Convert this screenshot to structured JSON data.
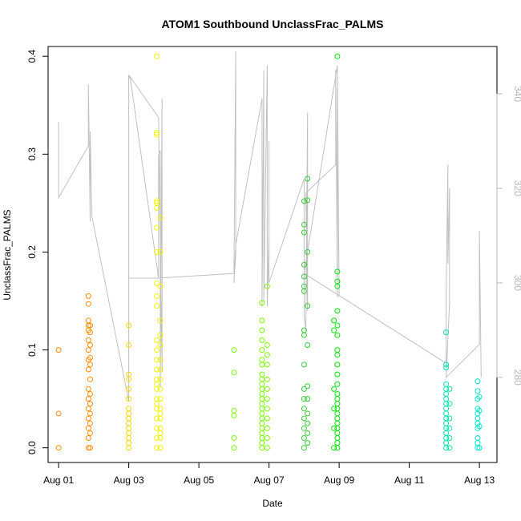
{
  "chart_data": {
    "type": "scatter",
    "title": "ATOM1 Southbound UnclassFrac_PALMS",
    "xlabel": "Date",
    "ylabel": "UnclassFrac_PALMS",
    "x_tick_labels": [
      "Aug 01",
      "Aug 03",
      "Aug 05",
      "Aug 07",
      "Aug 09",
      "Aug 11",
      "Aug 13"
    ],
    "x_ticks_day": [
      1,
      3,
      5,
      7,
      9,
      11,
      13
    ],
    "xlim_day": [
      0.7,
      13.5
    ],
    "ylim": [
      -0.015,
      0.41
    ],
    "y_ticks": [
      0.0,
      0.1,
      0.2,
      0.3,
      0.4
    ],
    "y_tick_labels": [
      "0.0",
      "0.1",
      "0.2",
      "0.3",
      "0.4"
    ],
    "right_axis": {
      "ticks": [
        280,
        300,
        320,
        340
      ],
      "tick_labels": [
        "280",
        "300",
        "320",
        "340"
      ],
      "ylim": [
        262,
        350
      ],
      "color": "#b8b8b8"
    },
    "grid": false,
    "series": [
      {
        "color": "#ff8c00",
        "points": [
          [
            1.0,
            0.1
          ],
          [
            1.0,
            0.035
          ],
          [
            1.0,
            0.0
          ],
          [
            1.85,
            0.155
          ],
          [
            1.85,
            0.147
          ],
          [
            1.85,
            0.13
          ],
          [
            1.85,
            0.125
          ],
          [
            1.85,
            0.12
          ],
          [
            1.85,
            0.11
          ],
          [
            1.85,
            0.1
          ],
          [
            1.85,
            0.09
          ],
          [
            1.85,
            0.08
          ],
          [
            1.85,
            0.06
          ],
          [
            1.85,
            0.05
          ],
          [
            1.85,
            0.04
          ],
          [
            1.85,
            0.03
          ],
          [
            1.85,
            0.02
          ],
          [
            1.85,
            0.01
          ],
          [
            1.85,
            0.0
          ],
          [
            1.9,
            0.125
          ],
          [
            1.9,
            0.118
          ],
          [
            1.9,
            0.105
          ],
          [
            1.9,
            0.092
          ],
          [
            1.9,
            0.085
          ],
          [
            1.9,
            0.07
          ],
          [
            1.9,
            0.055
          ],
          [
            1.9,
            0.045
          ],
          [
            1.9,
            0.035
          ],
          [
            1.9,
            0.025
          ],
          [
            1.9,
            0.015
          ],
          [
            1.9,
            0.0
          ]
        ]
      },
      {
        "color": "#ffd700",
        "points": [
          [
            3.0,
            0.125
          ],
          [
            3.0,
            0.105
          ],
          [
            3.0,
            0.075
          ],
          [
            3.0,
            0.07
          ],
          [
            3.0,
            0.06
          ],
          [
            3.0,
            0.05
          ],
          [
            3.0,
            0.04
          ],
          [
            3.0,
            0.035
          ],
          [
            3.0,
            0.03
          ],
          [
            3.0,
            0.025
          ],
          [
            3.0,
            0.02
          ],
          [
            3.0,
            0.015
          ],
          [
            3.0,
            0.01
          ],
          [
            3.0,
            0.005
          ],
          [
            3.0,
            0.0
          ]
        ]
      },
      {
        "color": "#f5f500",
        "points": [
          [
            3.8,
            0.4
          ],
          [
            3.8,
            0.322
          ],
          [
            3.8,
            0.32
          ],
          [
            3.8,
            0.252
          ],
          [
            3.8,
            0.25
          ],
          [
            3.8,
            0.245
          ],
          [
            3.8,
            0.225
          ],
          [
            3.8,
            0.2
          ],
          [
            3.8,
            0.168
          ],
          [
            3.8,
            0.155
          ],
          [
            3.8,
            0.145
          ],
          [
            3.8,
            0.11
          ],
          [
            3.8,
            0.1
          ],
          [
            3.8,
            0.09
          ],
          [
            3.8,
            0.08
          ],
          [
            3.8,
            0.07
          ],
          [
            3.8,
            0.065
          ],
          [
            3.8,
            0.06
          ],
          [
            3.8,
            0.05
          ],
          [
            3.8,
            0.045
          ],
          [
            3.8,
            0.04
          ],
          [
            3.8,
            0.03
          ],
          [
            3.8,
            0.02
          ],
          [
            3.8,
            0.01
          ],
          [
            3.8,
            0.0
          ],
          [
            3.9,
            0.235
          ],
          [
            3.9,
            0.2
          ],
          [
            3.9,
            0.165
          ],
          [
            3.9,
            0.13
          ],
          [
            3.9,
            0.115
          ],
          [
            3.9,
            0.105
          ],
          [
            3.9,
            0.09
          ],
          [
            3.9,
            0.08
          ],
          [
            3.9,
            0.07
          ],
          [
            3.9,
            0.06
          ],
          [
            3.9,
            0.05
          ],
          [
            3.9,
            0.04
          ],
          [
            3.9,
            0.035
          ],
          [
            3.9,
            0.03
          ],
          [
            3.9,
            0.02
          ],
          [
            3.9,
            0.015
          ],
          [
            3.9,
            0.01
          ],
          [
            3.9,
            0.0
          ]
        ]
      },
      {
        "color": "#7cfc00",
        "points": [
          [
            6.0,
            0.1
          ],
          [
            6.0,
            0.077
          ],
          [
            6.0,
            0.038
          ],
          [
            6.0,
            0.033
          ],
          [
            6.0,
            0.01
          ],
          [
            6.0,
            0.0
          ],
          [
            6.8,
            0.148
          ],
          [
            6.8,
            0.13
          ],
          [
            6.8,
            0.12
          ],
          [
            6.8,
            0.11
          ],
          [
            6.8,
            0.1
          ],
          [
            6.8,
            0.09
          ],
          [
            6.8,
            0.085
          ],
          [
            6.8,
            0.075
          ],
          [
            6.8,
            0.07
          ],
          [
            6.8,
            0.065
          ],
          [
            6.8,
            0.06
          ],
          [
            6.8,
            0.055
          ],
          [
            6.8,
            0.05
          ],
          [
            6.8,
            0.045
          ],
          [
            6.8,
            0.04
          ],
          [
            6.8,
            0.035
          ],
          [
            6.8,
            0.03
          ],
          [
            6.8,
            0.025
          ],
          [
            6.8,
            0.02
          ],
          [
            6.8,
            0.015
          ],
          [
            6.8,
            0.01
          ],
          [
            6.8,
            0.005
          ],
          [
            6.8,
            0.0
          ],
          [
            6.95,
            0.165
          ],
          [
            6.95,
            0.105
          ],
          [
            6.95,
            0.095
          ],
          [
            6.95,
            0.085
          ],
          [
            6.95,
            0.07
          ],
          [
            6.95,
            0.06
          ],
          [
            6.95,
            0.05
          ],
          [
            6.95,
            0.04
          ],
          [
            6.95,
            0.03
          ],
          [
            6.95,
            0.02
          ],
          [
            6.95,
            0.01
          ],
          [
            6.95,
            0.0
          ]
        ]
      },
      {
        "color": "#32cd32",
        "points": [
          [
            8.0,
            0.252
          ],
          [
            8.0,
            0.228
          ],
          [
            8.0,
            0.22
          ],
          [
            8.0,
            0.187
          ],
          [
            8.0,
            0.175
          ],
          [
            8.0,
            0.165
          ],
          [
            8.0,
            0.16
          ],
          [
            8.0,
            0.12
          ],
          [
            8.0,
            0.115
          ],
          [
            8.0,
            0.085
          ],
          [
            8.0,
            0.06
          ],
          [
            8.0,
            0.05
          ],
          [
            8.0,
            0.04
          ],
          [
            8.0,
            0.03
          ],
          [
            8.0,
            0.02
          ],
          [
            8.0,
            0.01
          ],
          [
            8.0,
            0.0
          ],
          [
            8.1,
            0.275
          ],
          [
            8.1,
            0.253
          ],
          [
            8.1,
            0.2
          ],
          [
            8.1,
            0.145
          ],
          [
            8.1,
            0.105
          ],
          [
            8.1,
            0.063
          ],
          [
            8.1,
            0.05
          ],
          [
            8.1,
            0.035
          ],
          [
            8.1,
            0.025
          ],
          [
            8.1,
            0.015
          ],
          [
            8.1,
            0.005
          ]
        ]
      },
      {
        "color": "#00e600",
        "points": [
          [
            8.95,
            0.4
          ],
          [
            8.95,
            0.18
          ],
          [
            8.95,
            0.17
          ],
          [
            8.95,
            0.165
          ],
          [
            8.95,
            0.14
          ],
          [
            8.95,
            0.125
          ],
          [
            8.95,
            0.115
          ],
          [
            8.95,
            0.1
          ],
          [
            8.95,
            0.095
          ],
          [
            8.95,
            0.085
          ],
          [
            8.95,
            0.075
          ],
          [
            8.95,
            0.065
          ],
          [
            8.95,
            0.055
          ],
          [
            8.95,
            0.05
          ],
          [
            8.95,
            0.045
          ],
          [
            8.95,
            0.04
          ],
          [
            8.95,
            0.035
          ],
          [
            8.95,
            0.03
          ],
          [
            8.95,
            0.025
          ],
          [
            8.95,
            0.02
          ],
          [
            8.95,
            0.015
          ],
          [
            8.95,
            0.01
          ],
          [
            8.95,
            0.005
          ],
          [
            8.95,
            0.0
          ],
          [
            8.85,
            0.13
          ],
          [
            8.85,
            0.12
          ],
          [
            8.85,
            0.06
          ],
          [
            8.85,
            0.04
          ],
          [
            8.85,
            0.02
          ],
          [
            8.85,
            0.0
          ]
        ]
      },
      {
        "color": "#00e5b0",
        "points": [
          [
            12.05,
            0.118
          ],
          [
            12.05,
            0.085
          ],
          [
            12.05,
            0.082
          ],
          [
            12.05,
            0.065
          ],
          [
            12.05,
            0.06
          ],
          [
            12.05,
            0.055
          ],
          [
            12.05,
            0.05
          ],
          [
            12.05,
            0.045
          ],
          [
            12.05,
            0.04
          ],
          [
            12.05,
            0.035
          ],
          [
            12.05,
            0.03
          ],
          [
            12.05,
            0.025
          ],
          [
            12.05,
            0.02
          ],
          [
            12.05,
            0.015
          ],
          [
            12.05,
            0.01
          ],
          [
            12.05,
            0.005
          ],
          [
            12.05,
            0.0
          ],
          [
            12.15,
            0.06
          ],
          [
            12.15,
            0.045
          ],
          [
            12.15,
            0.03
          ],
          [
            12.15,
            0.02
          ],
          [
            12.15,
            0.01
          ],
          [
            12.15,
            0.0
          ]
        ]
      },
      {
        "color": "#00e5cc",
        "points": [
          [
            12.95,
            0.068
          ],
          [
            12.95,
            0.058
          ],
          [
            12.95,
            0.05
          ],
          [
            12.95,
            0.04
          ],
          [
            12.95,
            0.035
          ],
          [
            12.95,
            0.03
          ],
          [
            12.95,
            0.025
          ],
          [
            12.95,
            0.02
          ],
          [
            12.95,
            0.01
          ],
          [
            12.95,
            0.005
          ],
          [
            12.95,
            0.0
          ],
          [
            13.0,
            0.052
          ],
          [
            13.0,
            0.038
          ],
          [
            13.0,
            0.022
          ],
          [
            13.0,
            0.0
          ]
        ]
      }
    ],
    "secondary_line": {
      "color": "#c0c0c0",
      "note": "",
      "points": [
        [
          1.0,
          334
        ],
        [
          1.0,
          318
        ],
        [
          1.85,
          329
        ],
        [
          1.85,
          342
        ],
        [
          1.9,
          313
        ],
        [
          1.9,
          332
        ],
        [
          1.95,
          314
        ],
        [
          3.0,
          275
        ],
        [
          3.0,
          344
        ],
        [
          3.0,
          301
        ],
        [
          3.85,
          301
        ],
        [
          3.85,
          327
        ],
        [
          3.9,
          328
        ],
        [
          3.9,
          278
        ],
        [
          3.95,
          339
        ],
        [
          3.95,
          281
        ],
        [
          3.85,
          335
        ],
        [
          3.0,
          344
        ],
        [
          3.05,
          343
        ],
        [
          3.85,
          301
        ],
        [
          6.0,
          302
        ],
        [
          6.05,
          349
        ],
        [
          6.05,
          306
        ],
        [
          6.0,
          300
        ],
        [
          6.05,
          308
        ],
        [
          6.8,
          339
        ],
        [
          6.8,
          295
        ],
        [
          6.85,
          345
        ],
        [
          6.85,
          296
        ],
        [
          6.95,
          346
        ],
        [
          6.95,
          295
        ],
        [
          7.0,
          310
        ],
        [
          7.0,
          330
        ],
        [
          7.0,
          300
        ],
        [
          8.0,
          322
        ],
        [
          8.0,
          293
        ],
        [
          8.05,
          290
        ],
        [
          8.1,
          336
        ],
        [
          8.1,
          294
        ],
        [
          8.05,
          319
        ],
        [
          8.9,
          325
        ],
        [
          8.9,
          345
        ],
        [
          8.95,
          297
        ],
        [
          8.95,
          341
        ],
        [
          9.0,
          297
        ],
        [
          8.95,
          346
        ],
        [
          8.0,
          302
        ],
        [
          12.05,
          283
        ],
        [
          12.05,
          298
        ],
        [
          12.1,
          325
        ],
        [
          12.1,
          304
        ],
        [
          12.15,
          320
        ],
        [
          12.15,
          296
        ],
        [
          12.05,
          280
        ],
        [
          13.0,
          287
        ],
        [
          13.0,
          311
        ],
        [
          13.05,
          280
        ]
      ]
    }
  }
}
